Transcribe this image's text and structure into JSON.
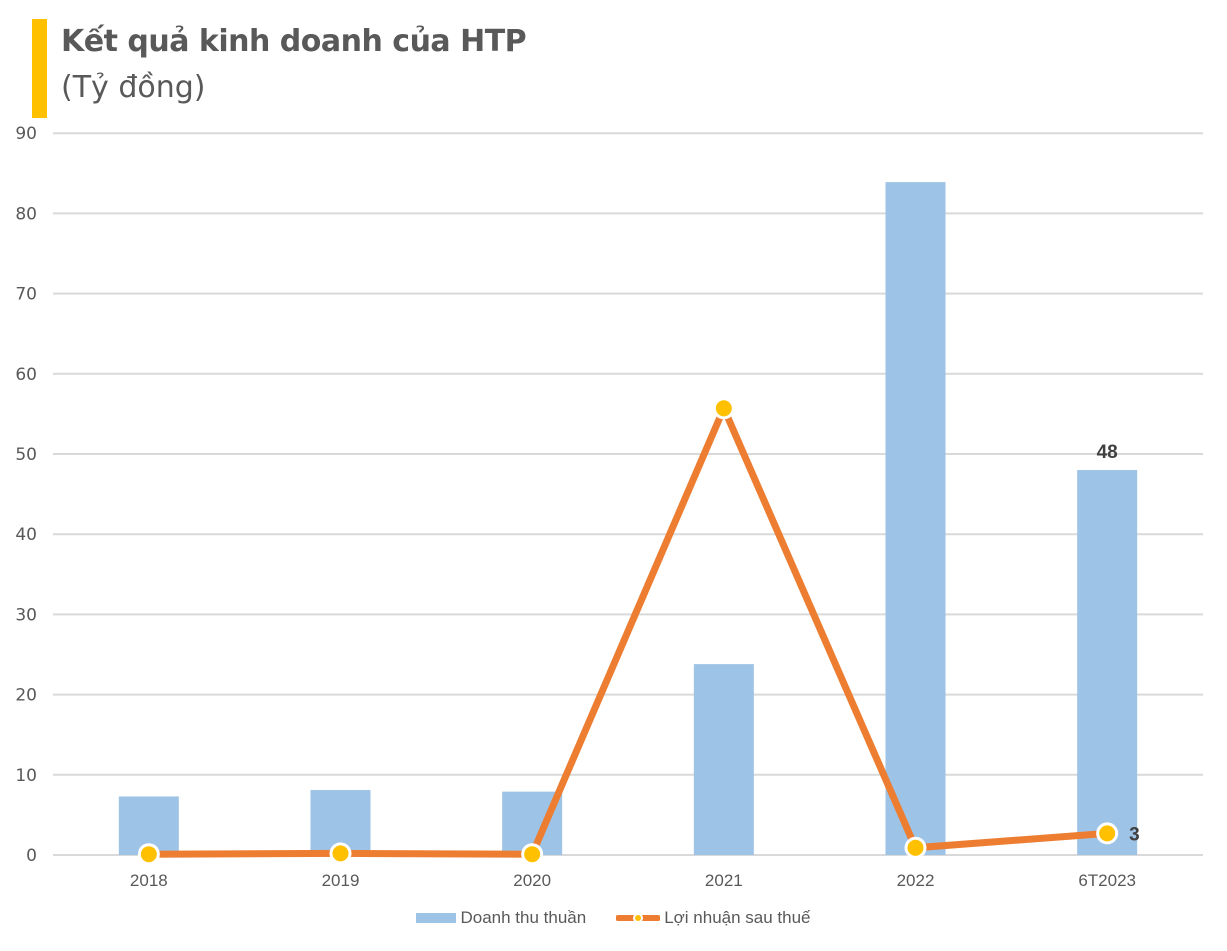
{
  "header": {
    "title": "Kết quả kinh doanh của HTP",
    "subtitle": "(Tỷ đồng)",
    "accent_color": "#FFC000"
  },
  "legend": {
    "items": [
      {
        "label": "Doanh thu thuần",
        "color": "#9DC3E6",
        "type": "bar"
      },
      {
        "label": "Lợi nhuận sau thuế",
        "color": "#ED7D31",
        "marker_color": "#FFC000",
        "type": "line"
      }
    ]
  },
  "chart_data": {
    "type": "bar+line",
    "title": "Kết quả kinh doanh của HTP",
    "subtitle": "(Tỷ đồng)",
    "xlabel": "",
    "ylabel": "",
    "categories": [
      "2018",
      "2019",
      "2020",
      "2021",
      "2022",
      "6T2023"
    ],
    "series": [
      {
        "name": "Doanh thu thuần",
        "type": "bar",
        "color": "#9DC3E6",
        "values": [
          7.3,
          8.1,
          7.9,
          23.8,
          83.9,
          48
        ]
      },
      {
        "name": "Lợi nhuận sau thuế",
        "type": "line",
        "color": "#ED7D31",
        "marker_color": "#FFC000",
        "values": [
          0.1,
          0.2,
          0.1,
          55.7,
          0.9,
          2.7
        ]
      }
    ],
    "data_labels": [
      {
        "series": "Doanh thu thuần",
        "category": "6T2023",
        "text": "48"
      },
      {
        "series": "Lợi nhuận sau thuế",
        "category": "6T2023",
        "text": "3"
      }
    ],
    "ylim": [
      0,
      90
    ],
    "yticks": [
      0,
      10,
      20,
      30,
      40,
      50,
      60,
      70,
      80,
      90
    ],
    "grid": true,
    "legend_position": "bottom"
  }
}
